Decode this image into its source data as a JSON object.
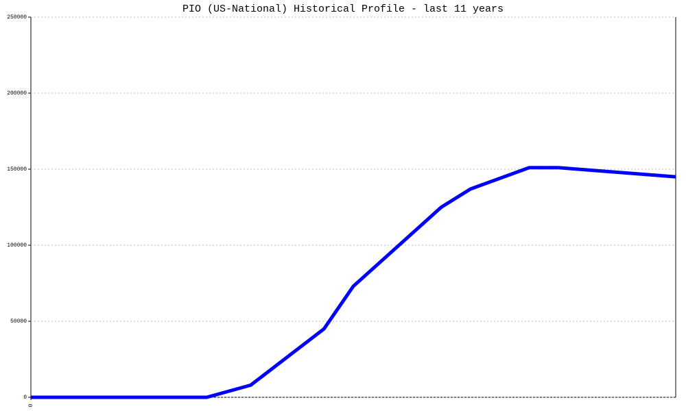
{
  "chart_data": {
    "type": "line",
    "title": "PIO (US-National) Historical Profile - last 11 years",
    "x": [
      0,
      3,
      3.75,
      5,
      5.5,
      7,
      7.5,
      8.5,
      9,
      11
    ],
    "series": [
      {
        "color": "#0000ff",
        "values": [
          0,
          0,
          8000,
          45000,
          73000,
          125000,
          137000,
          151000,
          151000,
          145000
        ]
      }
    ],
    "xlim": [
      0,
      11
    ],
    "xticks": [
      0
    ],
    "ylim": [
      0,
      250000
    ],
    "yticks": [
      0,
      50000,
      100000,
      150000,
      200000,
      250000
    ],
    "grid": true
  }
}
